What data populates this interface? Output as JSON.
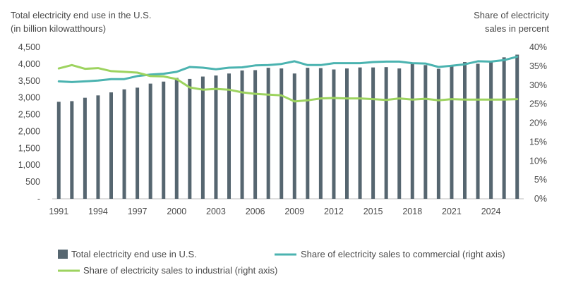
{
  "chart_data": {
    "type": "bar+line",
    "title_left_line1": "Total electricity end use in the U.S.",
    "title_left_line2": "(in billion kilowatthours)",
    "title_right_line1": "Share of electricity",
    "title_right_line2": "sales in percent",
    "x": [
      1991,
      1992,
      1993,
      1994,
      1995,
      1996,
      1997,
      1998,
      1999,
      2000,
      2001,
      2002,
      2003,
      2004,
      2005,
      2006,
      2007,
      2008,
      2009,
      2010,
      2011,
      2012,
      2013,
      2014,
      2015,
      2016,
      2017,
      2018,
      2019,
      2020,
      2021,
      2022,
      2023,
      2024,
      2025,
      2026
    ],
    "x_tick_labels": [
      "1991",
      "1994",
      "1997",
      "2000",
      "2003",
      "2006",
      "2009",
      "2012",
      "2015",
      "2018",
      "2021",
      "2024"
    ],
    "left_axis": {
      "min": 0,
      "max": 4500,
      "ticks": [
        "-",
        "500",
        "1,000",
        "1,500",
        "2,000",
        "2,500",
        "3,000",
        "3,500",
        "4,000",
        "4,500"
      ]
    },
    "right_axis": {
      "min": 0,
      "max": 40,
      "ticks": [
        "0%",
        "5%",
        "10%",
        "15%",
        "20%",
        "25%",
        "30%",
        "35%",
        "40%"
      ]
    },
    "series": [
      {
        "name": "Total electricity end use in U.S.",
        "kind": "bar",
        "axis": "left",
        "color": "#566670",
        "values": [
          2880,
          2900,
          3000,
          3070,
          3160,
          3250,
          3300,
          3420,
          3480,
          3590,
          3560,
          3630,
          3660,
          3720,
          3810,
          3820,
          3890,
          3870,
          3720,
          3890,
          3880,
          3840,
          3870,
          3900,
          3900,
          3910,
          3870,
          4010,
          3970,
          3860,
          3930,
          4060,
          4010,
          4060,
          4200,
          4280
        ]
      },
      {
        "name": "Share of electricity sales to commercial (right axis)",
        "kind": "line",
        "axis": "right",
        "color": "#4bb3b0",
        "values": [
          31.0,
          30.8,
          31.0,
          31.2,
          31.6,
          31.6,
          32.4,
          32.8,
          33.0,
          33.5,
          34.8,
          34.6,
          34.2,
          34.6,
          34.7,
          35.2,
          35.3,
          35.6,
          36.3,
          35.3,
          35.3,
          35.8,
          35.8,
          35.8,
          36.1,
          36.2,
          36.2,
          35.8,
          35.7,
          34.8,
          35.1,
          35.5,
          36.3,
          36.2,
          36.6,
          37.5
        ]
      },
      {
        "name": "Share of electricity sales to industrial (right axis)",
        "kind": "line",
        "axis": "right",
        "color": "#9dd35f",
        "values": [
          34.4,
          35.3,
          34.3,
          34.5,
          33.7,
          33.5,
          33.3,
          32.4,
          32.3,
          31.6,
          29.4,
          28.8,
          29.0,
          28.8,
          28.1,
          27.7,
          27.5,
          27.3,
          25.7,
          26.0,
          26.5,
          26.6,
          26.5,
          26.5,
          26.3,
          26.1,
          26.5,
          26.2,
          26.4,
          26.0,
          26.3,
          26.2,
          26.2,
          26.2,
          26.2,
          26.3
        ]
      }
    ],
    "legend_position": "bottom"
  }
}
